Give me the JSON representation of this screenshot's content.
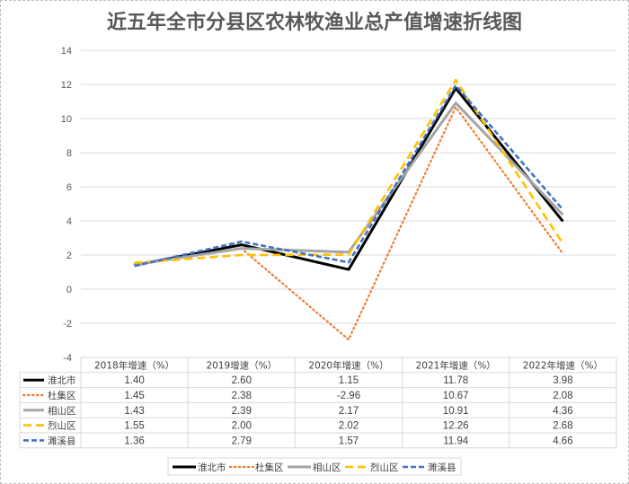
{
  "chart_data": {
    "type": "line",
    "title": "近五年全市分县区农林牧渔业总产值增速折线图",
    "categories": [
      "2018年增速（%）",
      "2019增速（%）",
      "2020年增速（%）",
      "2021年增速（%）",
      "2022年增速（%）"
    ],
    "ylim": [
      -4,
      14
    ],
    "yticks": [
      -4,
      -2,
      0,
      2,
      4,
      6,
      8,
      10,
      12,
      14
    ],
    "grid": true,
    "legend_position": "bottom",
    "data_table": true,
    "series": [
      {
        "name": "淮北市",
        "values": [
          1.4,
          2.6,
          1.15,
          11.78,
          3.98
        ],
        "labels": [
          "1.40",
          "2.60",
          "1.15",
          "11.78",
          "3.98"
        ],
        "color": "#000000",
        "style": "solid"
      },
      {
        "name": "杜集区",
        "values": [
          1.45,
          2.38,
          -2.96,
          10.67,
          2.08
        ],
        "labels": [
          "1.45",
          "2.38",
          "-2.96",
          "10.67",
          "2.08"
        ],
        "color": "#ED7D31",
        "style": "dotted"
      },
      {
        "name": "相山区",
        "values": [
          1.43,
          2.39,
          2.17,
          10.91,
          4.36
        ],
        "labels": [
          "1.43",
          "2.39",
          "2.17",
          "10.91",
          "4.36"
        ],
        "color": "#A5A5A5",
        "style": "solid"
      },
      {
        "name": "烈山区",
        "values": [
          1.55,
          2.0,
          2.02,
          12.26,
          2.68
        ],
        "labels": [
          "1.55",
          "2.00",
          "2.02",
          "12.26",
          "2.68"
        ],
        "color": "#FFC000",
        "style": "dash"
      },
      {
        "name": "濉溪县",
        "values": [
          1.36,
          2.79,
          1.57,
          11.94,
          4.66
        ],
        "labels": [
          "1.36",
          "2.79",
          "1.57",
          "11.94",
          "4.66"
        ],
        "color": "#4472C4",
        "style": "shortdash"
      }
    ]
  }
}
